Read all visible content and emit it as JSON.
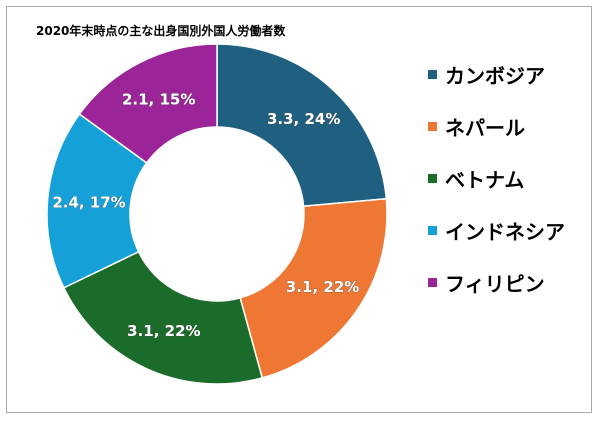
{
  "chart_data": {
    "type": "pie",
    "title": "2020年末時点の主な出身国別外国人労働者数",
    "categories": [
      "カンボジア",
      "ネパール",
      "ベトナム",
      "インドネシア",
      "フィリピン"
    ],
    "values": [
      3.3,
      3.1,
      3.1,
      2.4,
      2.1
    ],
    "percents": [
      24,
      22,
      22,
      17,
      15
    ],
    "data_labels": [
      "3.3, 24%",
      "3.1, 22%",
      "3.1, 22%",
      "2.4, 17%",
      "2.1, 15%"
    ],
    "colors": [
      "#1f5f7f",
      "#ee7733",
      "#1b6b2a",
      "#16a0d8",
      "#9b2598"
    ],
    "donut": true,
    "legend_position": "right"
  }
}
